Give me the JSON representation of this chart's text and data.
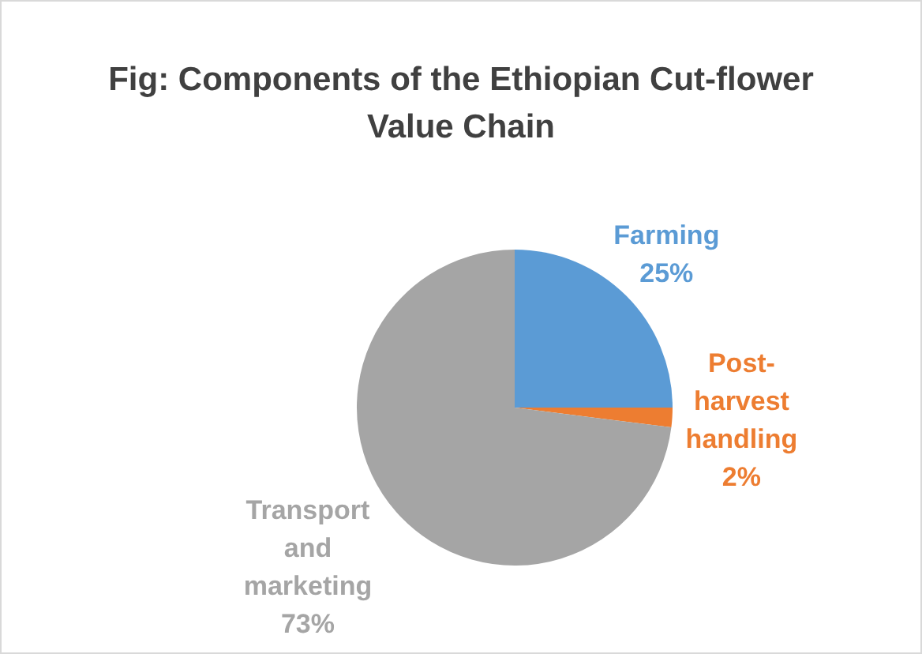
{
  "chart_data": {
    "type": "pie",
    "title": "Fig: Components of the Ethiopian Cut-flower Value Chain",
    "categories": [
      "Farming",
      "Post-harvest handling",
      "Transport and marketing"
    ],
    "values": [
      25,
      2,
      73
    ],
    "colors": [
      "#5b9bd5",
      "#ed7d31",
      "#a5a5a5"
    ],
    "value_labels": [
      "25%",
      "2%",
      "73%"
    ],
    "legend": false
  }
}
